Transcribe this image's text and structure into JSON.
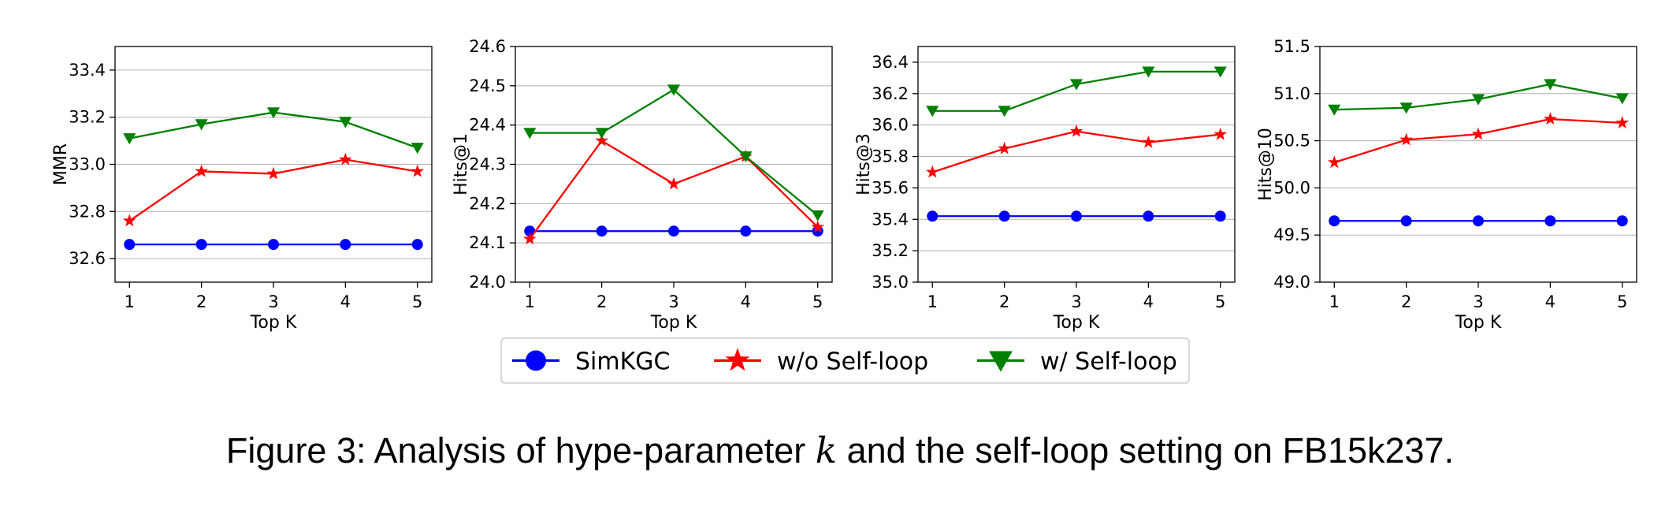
{
  "chart_data": [
    {
      "type": "line",
      "xlabel": "Top K",
      "ylabel": "MMR",
      "x": [
        1,
        2,
        3,
        4,
        5
      ],
      "ylim": [
        32.5,
        33.5
      ],
      "yticks": [
        32.6,
        32.8,
        33.0,
        33.2,
        33.4
      ],
      "grid": "y",
      "series": [
        {
          "name": "SimKGC",
          "values": [
            32.66,
            32.66,
            32.66,
            32.66,
            32.66
          ]
        },
        {
          "name": "w/o Self-loop",
          "values": [
            32.76,
            32.97,
            32.96,
            33.02,
            32.97
          ]
        },
        {
          "name": "w/ Self-loop",
          "values": [
            33.11,
            33.17,
            33.22,
            33.18,
            33.07
          ]
        }
      ]
    },
    {
      "type": "line",
      "xlabel": "Top K",
      "ylabel": "Hits@1",
      "x": [
        1,
        2,
        3,
        4,
        5
      ],
      "ylim": [
        24.0,
        24.6
      ],
      "yticks": [
        24.0,
        24.1,
        24.2,
        24.3,
        24.4,
        24.5,
        24.6
      ],
      "grid": "y",
      "series": [
        {
          "name": "SimKGC",
          "values": [
            24.13,
            24.13,
            24.13,
            24.13,
            24.13
          ]
        },
        {
          "name": "w/o Self-loop",
          "values": [
            24.11,
            24.36,
            24.25,
            24.32,
            24.14
          ]
        },
        {
          "name": "w/ Self-loop",
          "values": [
            24.38,
            24.38,
            24.49,
            24.32,
            24.17
          ]
        }
      ]
    },
    {
      "type": "line",
      "xlabel": "Top K",
      "ylabel": "Hits@3",
      "x": [
        1,
        2,
        3,
        4,
        5
      ],
      "ylim": [
        35.0,
        36.5
      ],
      "yticks": [
        35.0,
        35.2,
        35.4,
        35.6,
        35.8,
        36.0,
        36.2,
        36.4
      ],
      "grid": "y",
      "series": [
        {
          "name": "SimKGC",
          "values": [
            35.42,
            35.42,
            35.42,
            35.42,
            35.42
          ]
        },
        {
          "name": "w/o Self-loop",
          "values": [
            35.7,
            35.85,
            35.96,
            35.89,
            35.94
          ]
        },
        {
          "name": "w/ Self-loop",
          "values": [
            36.09,
            36.09,
            36.26,
            36.34,
            36.34
          ]
        }
      ]
    },
    {
      "type": "line",
      "xlabel": "Top K",
      "ylabel": "Hits@10",
      "x": [
        1,
        2,
        3,
        4,
        5
      ],
      "ylim": [
        49.0,
        51.5
      ],
      "yticks": [
        49.0,
        49.5,
        50.0,
        50.5,
        51.0,
        51.5
      ],
      "grid": "y",
      "series": [
        {
          "name": "SimKGC",
          "values": [
            49.65,
            49.65,
            49.65,
            49.65,
            49.65
          ]
        },
        {
          "name": "w/o Self-loop",
          "values": [
            50.27,
            50.51,
            50.57,
            50.73,
            50.69
          ]
        },
        {
          "name": "w/ Self-loop",
          "values": [
            50.83,
            50.85,
            50.94,
            51.1,
            50.95
          ]
        }
      ]
    }
  ],
  "legend": {
    "placement": "bottom-center",
    "items": [
      {
        "label": "SimKGC",
        "marker": "circle",
        "color": "#0000ff"
      },
      {
        "label": "w/o Self-loop",
        "marker": "star",
        "color": "#ff0000"
      },
      {
        "label": "w/ Self-loop",
        "marker": "triangle-down",
        "color": "#008000"
      }
    ]
  },
  "series_colors": [
    "#0000ff",
    "#ff0000",
    "#008000"
  ],
  "series_markers": [
    "circle",
    "star",
    "triangle-down"
  ],
  "caption": {
    "prefix": "Figure 3: Analysis of hype-parameter ",
    "variable": "k",
    "suffix": " and the self-loop setting on FB15k237."
  }
}
